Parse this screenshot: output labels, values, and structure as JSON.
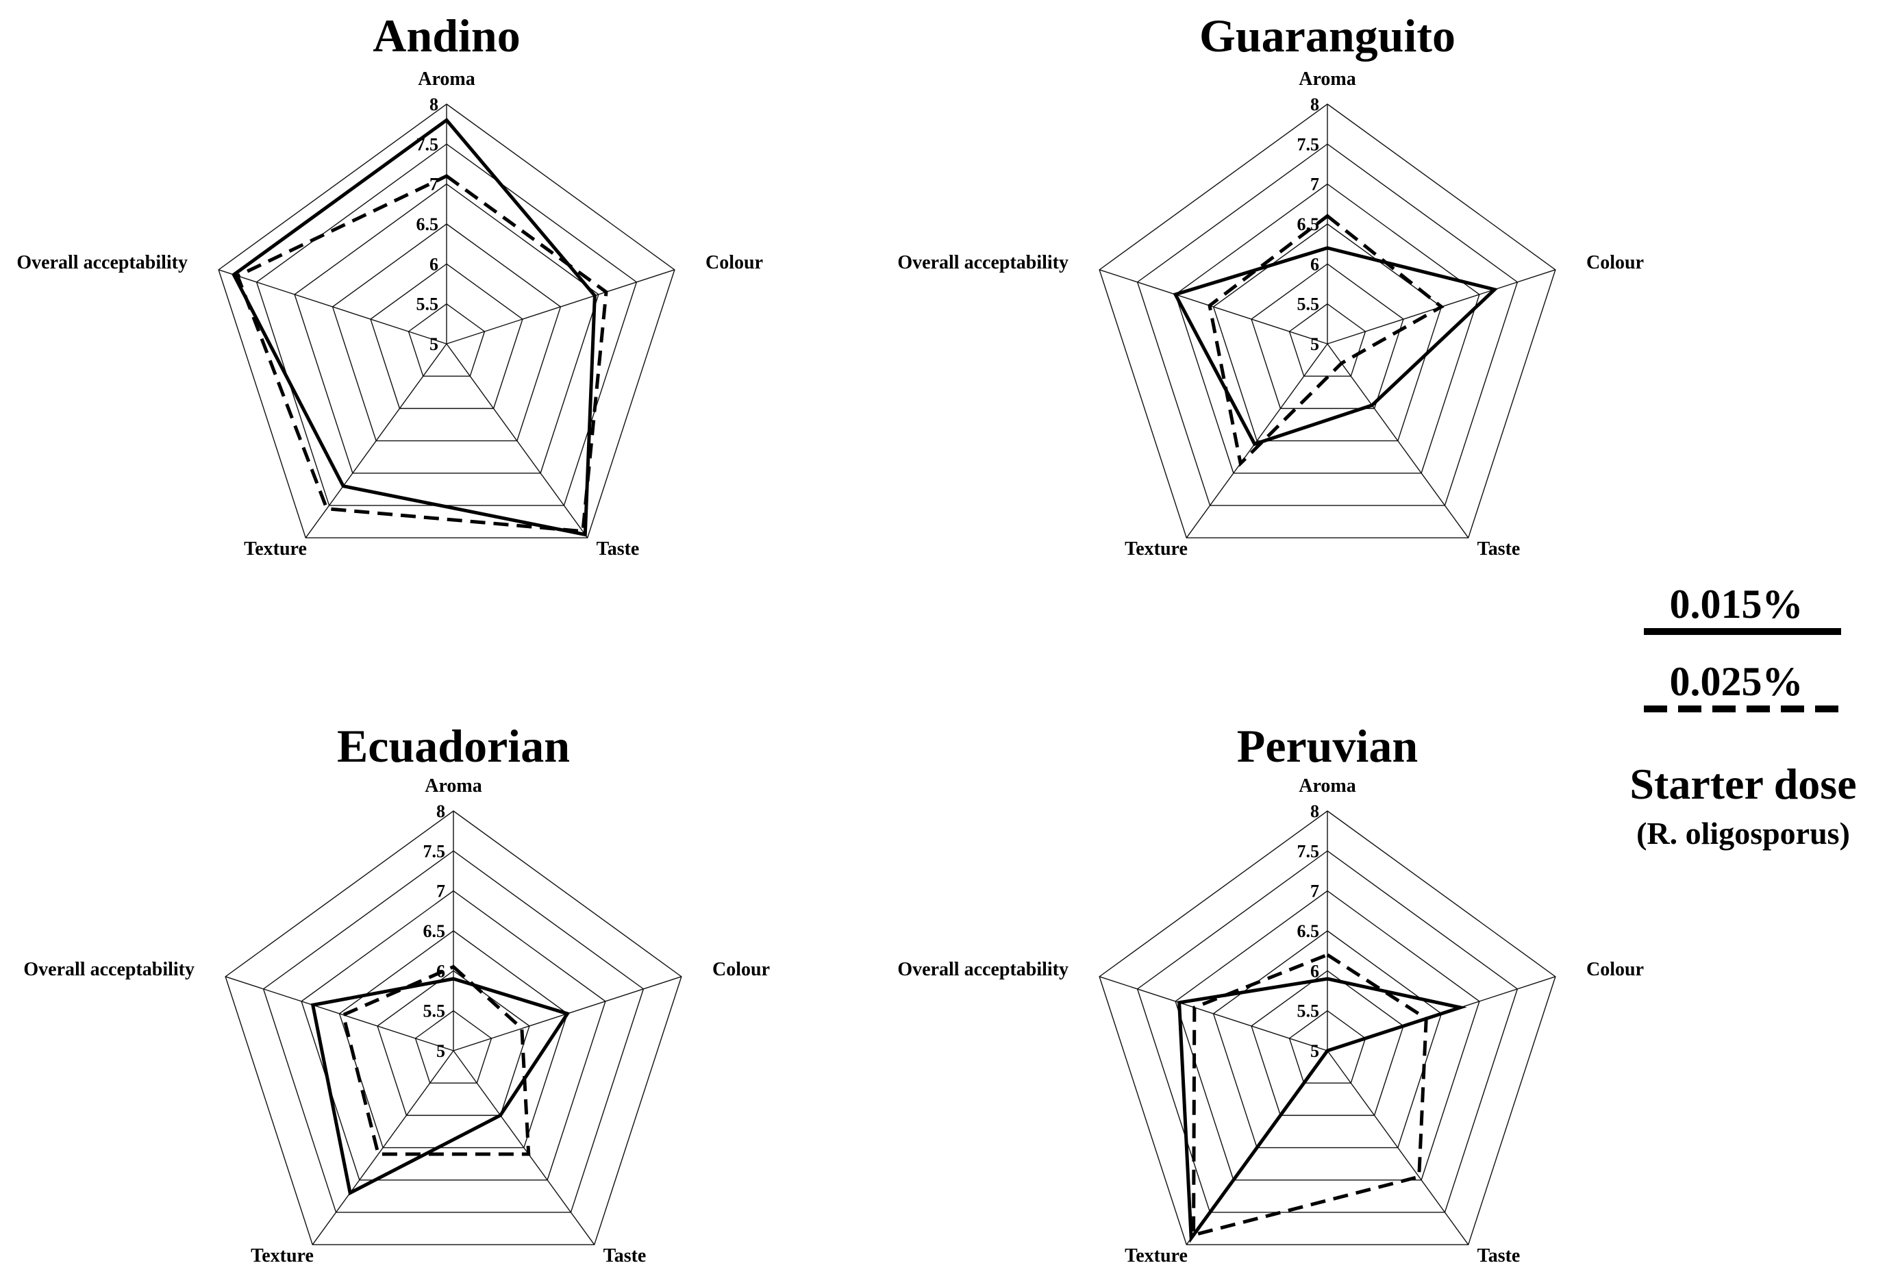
{
  "chart_data": [
    {
      "type": "radar",
      "title": "Andino",
      "axes": [
        "Aroma",
        "Colour",
        "Taste",
        "Texture",
        "Overall acceptability"
      ],
      "rlim": [
        5,
        8
      ],
      "ticks": [
        "5",
        "5.5",
        "6",
        "6.5",
        "7",
        "7.5",
        "8"
      ],
      "series": [
        {
          "name": "0.015%",
          "values": [
            7.8,
            6.95,
            7.95,
            7.2,
            7.8
          ]
        },
        {
          "name": "0.025%",
          "values": [
            7.1,
            7.1,
            7.9,
            7.55,
            7.75
          ]
        }
      ]
    },
    {
      "type": "radar",
      "title": "Guaranguito",
      "axes": [
        "Aroma",
        "Colour",
        "Taste",
        "Texture",
        "Overall acceptability"
      ],
      "rlim": [
        5,
        8
      ],
      "ticks": [
        "5",
        "5.5",
        "6",
        "6.5",
        "7",
        "7.5",
        "8"
      ],
      "series": [
        {
          "name": "0.015%",
          "values": [
            6.2,
            7.2,
            5.95,
            6.55,
            7.0
          ]
        },
        {
          "name": "0.025%",
          "values": [
            6.6,
            6.5,
            5.3,
            6.85,
            6.55
          ]
        }
      ]
    },
    {
      "type": "radar",
      "title": "Ecuadorian",
      "axes": [
        "Aroma",
        "Colour",
        "Taste",
        "Texture",
        "Overall acceptability"
      ],
      "rlim": [
        5,
        8
      ],
      "ticks": [
        "5",
        "5.5",
        "6",
        "6.5",
        "7",
        "7.5",
        "8"
      ],
      "series": [
        {
          "name": "0.015%",
          "values": [
            5.9,
            6.5,
            6.0,
            7.2,
            6.85
          ]
        },
        {
          "name": "0.025%",
          "values": [
            6.05,
            5.9,
            6.6,
            6.6,
            6.45
          ]
        }
      ]
    },
    {
      "type": "radar",
      "title": "Peruvian",
      "axes": [
        "Aroma",
        "Colour",
        "Taste",
        "Texture",
        "Overall acceptability"
      ],
      "rlim": [
        5,
        8
      ],
      "ticks": [
        "5",
        "5.5",
        "6",
        "6.5",
        "7",
        "7.5",
        "8"
      ],
      "series": [
        {
          "name": "0.015%",
          "values": [
            5.9,
            6.75,
            5.0,
            7.9,
            6.95
          ]
        },
        {
          "name": "0.025%",
          "values": [
            6.2,
            6.3,
            6.95,
            7.85,
            6.75
          ]
        }
      ]
    }
  ],
  "legend": {
    "items": [
      {
        "label": "0.015%",
        "style": "solid"
      },
      {
        "label": "0.025%",
        "style": "dashed"
      }
    ],
    "title": "Starter dose",
    "subtitle": "(R. oligosporus)"
  }
}
